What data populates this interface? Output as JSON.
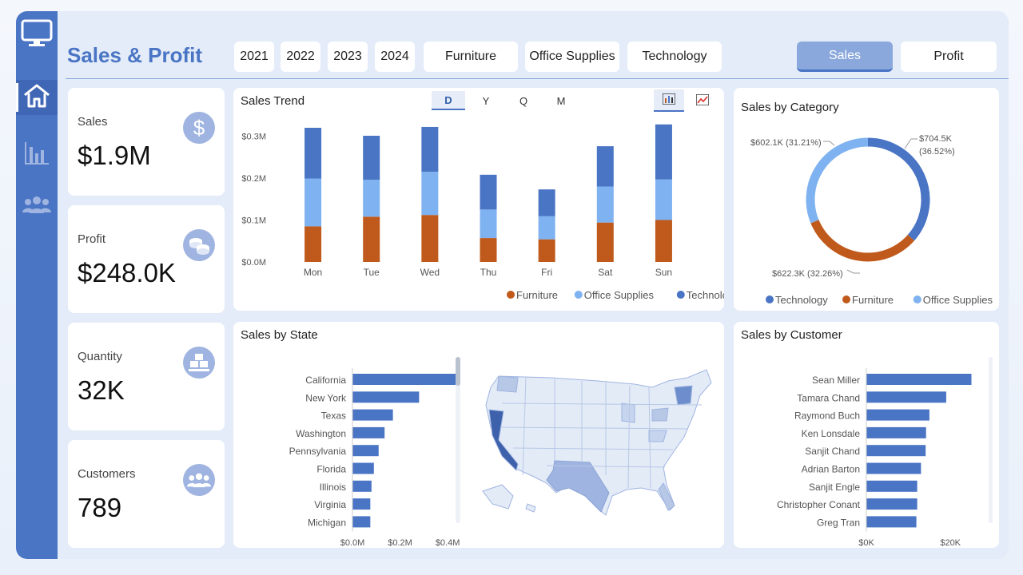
{
  "header": {
    "title": "Sales & Profit",
    "year_buttons": [
      "2021",
      "2022",
      "2023",
      "2024"
    ],
    "category_buttons": [
      "Furniture",
      "Office Supplies",
      "Technology"
    ],
    "measure_buttons": [
      "Sales",
      "Profit"
    ],
    "selected_measure": "Sales"
  },
  "sidebar": {
    "items": [
      {
        "icon": "monitor-icon"
      },
      {
        "icon": "home-icon",
        "active": true
      },
      {
        "icon": "bar-chart-icon"
      },
      {
        "icon": "people-icon"
      }
    ]
  },
  "kpis": [
    {
      "label": "Sales",
      "value": "$1.9M",
      "icon": "dollar-icon"
    },
    {
      "label": "Profit",
      "value": "$248.0K",
      "icon": "coins-icon"
    },
    {
      "label": "Quantity",
      "value": "32K",
      "icon": "boxes-icon"
    },
    {
      "label": "Customers",
      "value": "789",
      "icon": "customers-icon"
    }
  ],
  "colors": {
    "furniture": "#c05a1c",
    "office_supplies": "#7fb2f0",
    "technology": "#4a74c4",
    "accent": "#4a74c4"
  },
  "trend": {
    "title": "Sales Trend",
    "granularity": [
      "D",
      "Y",
      "Q",
      "M"
    ],
    "selected_granularity": "D"
  },
  "category": {
    "title": "Sales by Category",
    "labels": [
      "$704.5K",
      "(36.52%)",
      "$602.1K (31.21%)",
      "$622.3K (32.26%)"
    ]
  },
  "state": {
    "title": "Sales by State"
  },
  "customer": {
    "title": "Sales by Customer"
  },
  "chart_data": [
    {
      "type": "bar",
      "stacked": true,
      "title": "Sales Trend",
      "categories": [
        "Mon",
        "Tue",
        "Wed",
        "Thu",
        "Fri",
        "Sat",
        "Sun"
      ],
      "series": [
        {
          "name": "Furniture",
          "values": [
            0.085,
            0.108,
            0.112,
            0.057,
            0.054,
            0.094,
            0.1
          ]
        },
        {
          "name": "Office Supplies",
          "values": [
            0.114,
            0.088,
            0.103,
            0.068,
            0.055,
            0.086,
            0.097
          ]
        },
        {
          "name": "Technology",
          "values": [
            0.121,
            0.105,
            0.107,
            0.083,
            0.064,
            0.096,
            0.131
          ]
        }
      ],
      "yticks": [
        "$0.0M",
        "$0.1M",
        "$0.2M",
        "$0.3M"
      ],
      "ylim": [
        0,
        0.32
      ],
      "legend": "bottom-right",
      "grid": false
    },
    {
      "type": "pie",
      "donut": true,
      "title": "Sales by Category",
      "labels": [
        "Technology",
        "Furniture",
        "Office Supplies"
      ],
      "values": [
        704.5,
        622.3,
        602.1
      ],
      "percents": [
        36.52,
        32.26,
        31.21
      ],
      "legend": "bottom"
    },
    {
      "type": "bar",
      "orientation": "horizontal",
      "title": "Sales by State",
      "categories": [
        "California",
        "New York",
        "Texas",
        "Washington",
        "Pennsylvania",
        "Florida",
        "Illinois",
        "Virginia",
        "Michigan"
      ],
      "values": [
        0.45,
        0.28,
        0.17,
        0.135,
        0.11,
        0.09,
        0.08,
        0.075,
        0.075
      ],
      "xticks": [
        "$0.0M",
        "$0.2M",
        "$0.4M"
      ],
      "xlim": [
        0,
        0.45
      ]
    },
    {
      "type": "bar",
      "orientation": "horizontal",
      "title": "Sales by Customer",
      "categories": [
        "Sean Miller",
        "Tamara Chand",
        "Raymond Buch",
        "Ken Lonsdale",
        "Sanjit Chand",
        "Adrian Barton",
        "Sanjit Engle",
        "Christopher Conant",
        "Greg Tran"
      ],
      "values": [
        25.0,
        19.0,
        15.0,
        14.2,
        14.1,
        13.0,
        12.1,
        12.1,
        11.9
      ],
      "xticks": [
        "$0K",
        "$20K"
      ],
      "xlim": [
        0,
        27
      ]
    }
  ]
}
